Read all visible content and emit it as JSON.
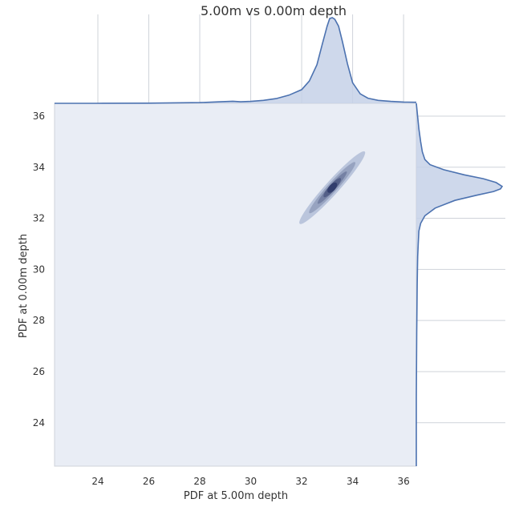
{
  "chart_data": {
    "type": "kde_joint",
    "title": "5.00m vs 0.00m depth",
    "xlabel": "PDF at 5.00m depth",
    "ylabel": "PDF at 0.00m depth",
    "xlim": [
      22.3,
      36.5
    ],
    "ylim": [
      22.3,
      36.5
    ],
    "xticks": [
      24,
      26,
      28,
      30,
      32,
      34,
      36
    ],
    "yticks": [
      24,
      26,
      28,
      30,
      32,
      34,
      36
    ],
    "grid": true,
    "colors": {
      "background": "#e9edf5",
      "line": "#4c72b0",
      "fill": "#c6d1e7",
      "grid": "#cfd3da"
    },
    "joint_kde": {
      "center": [
        33.2,
        33.2
      ],
      "levels": [
        {
          "x_range": [
            31.7,
            34.4
          ],
          "y_range": [
            31.7,
            34.3
          ],
          "density": 0.1
        },
        {
          "x_range": [
            32.3,
            34.2
          ],
          "y_range": [
            32.3,
            34.1
          ],
          "density": 0.3
        },
        {
          "x_range": [
            32.7,
            33.9
          ],
          "y_range": [
            32.7,
            33.8
          ],
          "density": 0.5
        },
        {
          "x_range": [
            32.9,
            33.6
          ],
          "y_range": [
            32.9,
            33.5
          ],
          "density": 0.7
        },
        {
          "x_range": [
            33.05,
            33.4
          ],
          "y_range": [
            33.05,
            33.35
          ],
          "density": 0.9
        }
      ]
    },
    "marginal_x": {
      "x": [
        22.3,
        24,
        26,
        28,
        28.8,
        29.3,
        29.6,
        30,
        30.5,
        31,
        31.5,
        32,
        32.3,
        32.6,
        32.8,
        33.0,
        33.1,
        33.2,
        33.3,
        33.45,
        33.6,
        33.8,
        34.0,
        34.3,
        34.6,
        35.0,
        35.5,
        36.0,
        36.5
      ],
      "density": [
        0.0,
        0.0,
        0.002,
        0.008,
        0.018,
        0.024,
        0.018,
        0.022,
        0.035,
        0.055,
        0.095,
        0.16,
        0.26,
        0.45,
        0.68,
        0.9,
        0.99,
        1.0,
        0.98,
        0.9,
        0.72,
        0.46,
        0.24,
        0.11,
        0.06,
        0.035,
        0.022,
        0.015,
        0.012
      ]
    },
    "marginal_y": {
      "y": [
        22.3,
        25,
        27.5,
        29.4,
        30,
        30.5,
        31,
        31.5,
        31.8,
        32.1,
        32.4,
        32.7,
        32.9,
        33.05,
        33.15,
        33.25,
        33.4,
        33.55,
        33.7,
        33.9,
        34.1,
        34.3,
        34.6,
        35.0,
        35.5,
        36.0,
        36.5
      ],
      "density": [
        0.0,
        0.0,
        0.005,
        0.01,
        0.013,
        0.016,
        0.022,
        0.03,
        0.05,
        0.1,
        0.22,
        0.45,
        0.7,
        0.9,
        0.98,
        1.0,
        0.93,
        0.78,
        0.56,
        0.32,
        0.16,
        0.1,
        0.07,
        0.05,
        0.03,
        0.015,
        0.0
      ]
    }
  }
}
